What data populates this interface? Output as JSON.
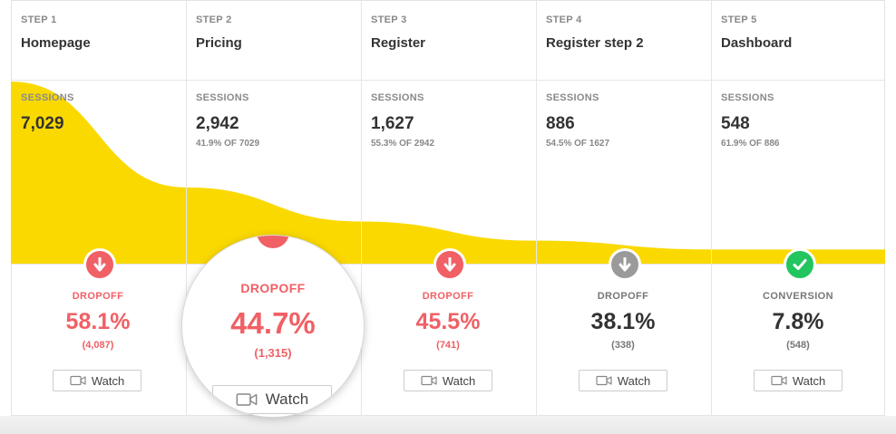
{
  "colors": {
    "funnel_fill": "#FAD900",
    "dropoff_red": "#F06065",
    "neutral_grey": "#9A9A9A",
    "conversion_green": "#22C55E"
  },
  "sessions_label": "SESSIONS",
  "watch_label": "Watch",
  "steps": [
    {
      "step_label": "STEP 1",
      "name": "Homepage",
      "sessions": "7,029",
      "sub": "",
      "outcome_label": "DROPOFF",
      "outcome_pct": "58.1%",
      "outcome_count": "(4,087)",
      "badge_icon": "arrow-down-icon",
      "badge_color": "#F06065"
    },
    {
      "step_label": "STEP 2",
      "name": "Pricing",
      "sessions": "2,942",
      "sub": "41.9% OF 7029",
      "outcome_label": "DROPOFF",
      "outcome_pct": "44.7%",
      "outcome_count": "(1,315)",
      "badge_icon": "arrow-down-icon",
      "badge_color": "#F06065"
    },
    {
      "step_label": "STEP 3",
      "name": "Register",
      "sessions": "1,627",
      "sub": "55.3% OF 2942",
      "outcome_label": "DROPOFF",
      "outcome_pct": "45.5%",
      "outcome_count": "(741)",
      "badge_icon": "arrow-down-icon",
      "badge_color": "#F06065"
    },
    {
      "step_label": "STEP 4",
      "name": "Register step 2",
      "sessions": "886",
      "sub": "54.5% OF 1627",
      "outcome_label": "DROPOFF",
      "outcome_pct": "38.1%",
      "outcome_count": "(338)",
      "badge_icon": "arrow-down-icon",
      "badge_color": "#9A9A9A"
    },
    {
      "step_label": "STEP 5",
      "name": "Dashboard",
      "sessions": "548",
      "sub": "61.9% OF 886",
      "outcome_label": "CONVERSION",
      "outcome_pct": "7.8%",
      "outcome_count": "(548)",
      "badge_icon": "check-icon",
      "badge_color": "#22C55E"
    }
  ]
}
